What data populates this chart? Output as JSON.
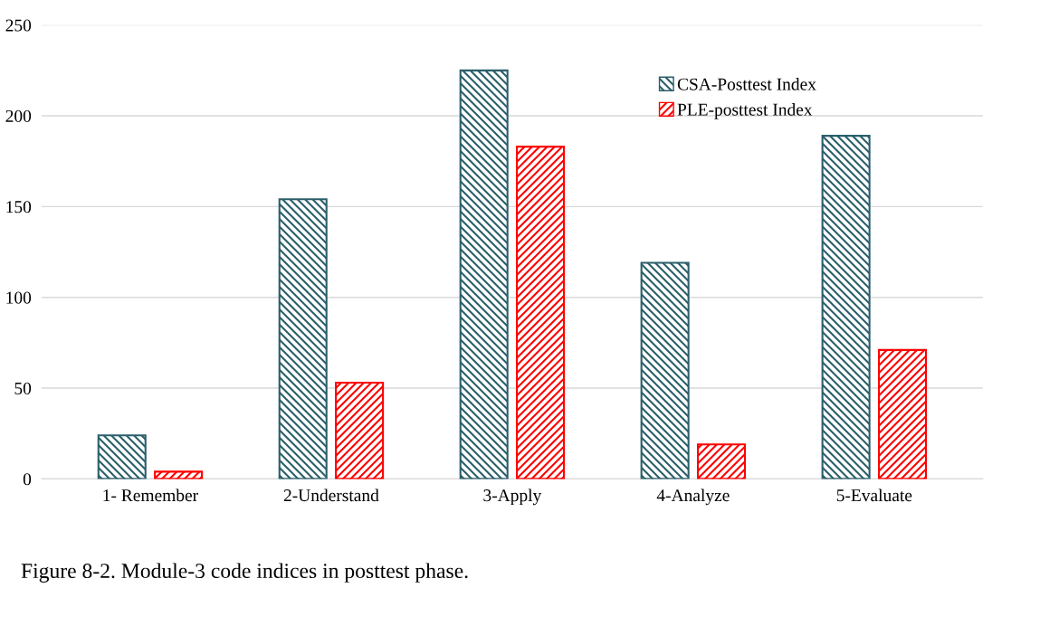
{
  "chart_data": {
    "type": "bar",
    "categories": [
      "1- Remember",
      "2-Understand",
      "3-Apply",
      "4-Analyze",
      "5-Evaluate"
    ],
    "series": [
      {
        "name": "CSA-Posttest Index",
        "color": "#2a5f6b",
        "values": [
          24,
          154,
          225,
          119,
          189
        ]
      },
      {
        "name": "PLE-posttest Index",
        "color": "#ff0000",
        "values": [
          4,
          53,
          183,
          19,
          71
        ]
      }
    ],
    "ylim": [
      0,
      250
    ],
    "yticks": [
      0,
      50,
      100,
      150,
      200,
      250
    ],
    "grid": "y",
    "legend": "top right",
    "annotations": [
      "Figure 8-2. Module-3 code indices in posttest phase."
    ]
  }
}
